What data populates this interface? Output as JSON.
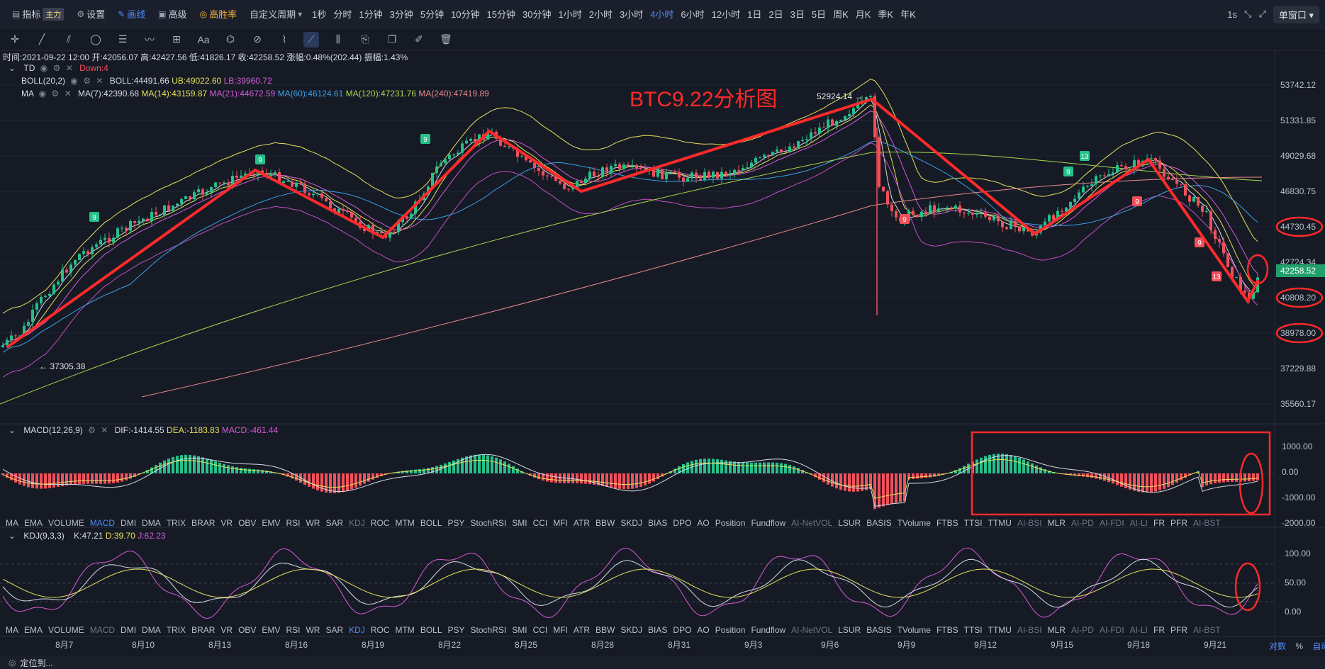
{
  "topbar": {
    "indicator_label": "指标",
    "main_badge": "主力",
    "settings_label": "设置",
    "draw_label": "画线",
    "advanced_label": "高级",
    "winrate_label": "高胜率",
    "custom_period_label": "自定义周期",
    "periods": [
      "1秒",
      "分时",
      "1分钟",
      "3分钟",
      "5分钟",
      "10分钟",
      "15分钟",
      "30分钟",
      "1小时",
      "2小时",
      "3小时",
      "4小时",
      "6小时",
      "12小时",
      "1日",
      "2日",
      "3日",
      "5日",
      "周K",
      "月K",
      "季K",
      "年K"
    ],
    "active_period": "4小时",
    "interval": "1s",
    "window_label": "单窗口"
  },
  "ohlc": {
    "time": "时间:2021-09-22 12:00",
    "open": "开:42056.07",
    "high": "高:42427.56",
    "low": "低:41826.17",
    "close": "收:42258.52",
    "change": "涨幅:0.48%(202.44)",
    "amplitude": "振幅:1.43%"
  },
  "td": {
    "name": "TD",
    "value": "Down:4"
  },
  "boll": {
    "name": "BOLL(20,2)",
    "boll": "BOLL:44491.66",
    "ub": "UB:49022.60",
    "lb": "LB:39960.72"
  },
  "ma": {
    "name": "MA",
    "ma7": "MA(7):42390.68",
    "ma14": "MA(14):43159.87",
    "ma21": "MA(21):44672.59",
    "ma60": "MA(60):46124.61",
    "ma120": "MA(120):47231.76",
    "ma240": "MA(240):47419.89"
  },
  "annotation_title": "BTC9.22分析图",
  "high_label": "52924.14",
  "low_label": "37305.38",
  "price_axis": [
    "53742.12",
    "51331.85",
    "49029.68",
    "46830.75",
    "44730.45",
    "42724.34",
    "40808.20",
    "38978.00",
    "37229.88",
    "35560.17"
  ],
  "current_price": "42258.52",
  "td_counts": [
    "9",
    "9",
    "9",
    "9",
    "9",
    "13",
    "9",
    "13",
    "9",
    "9",
    "9",
    "13"
  ],
  "macd": {
    "name": "MACD(12,26,9)",
    "dif": "DIF:-1414.55",
    "dea": "DEA:-1183.83",
    "macd": "MACD:-461.44",
    "axis": [
      "1000.00",
      "0.00",
      "-1000.00",
      "-2000.00"
    ]
  },
  "indicator_tabs_1": [
    "MA",
    "EMA",
    "VOLUME",
    "MACD",
    "DMI",
    "DMA",
    "TRIX",
    "BRAR",
    "VR",
    "OBV",
    "EMV",
    "RSI",
    "WR",
    "SAR",
    "KDJ",
    "ROC",
    "MTM",
    "BOLL",
    "PSY",
    "StochRSI",
    "SMI",
    "CCI",
    "MFI",
    "ATR",
    "BBW",
    "SKDJ",
    "BIAS",
    "DPO",
    "AO",
    "Position",
    "Fundflow",
    "AI-NetVOL",
    "LSUR",
    "BASIS",
    "TVolume",
    "FTBS",
    "TTSI",
    "TTMU",
    "AI-BSI",
    "MLR",
    "AI-PD",
    "AI-FDI",
    "AI-LI",
    "FR",
    "PFR",
    "AI-BST"
  ],
  "kdj": {
    "name": "KDJ(9,3,3)",
    "k": "K:47.21",
    "d": "D:39.70",
    "j": "J:62.23",
    "axis": [
      "100.00",
      "50.00",
      "0.00"
    ]
  },
  "date_axis": [
    "8月7",
    "8月10",
    "8月13",
    "8月16",
    "8月19",
    "8月22",
    "8月25",
    "8月28",
    "8月31",
    "9月3",
    "9月6",
    "9月9",
    "9月12",
    "9月15",
    "9月18",
    "9月21"
  ],
  "scale_labels": {
    "log": "对数",
    "percent": "%",
    "auto": "自动"
  },
  "locate_label": "定位到..."
}
